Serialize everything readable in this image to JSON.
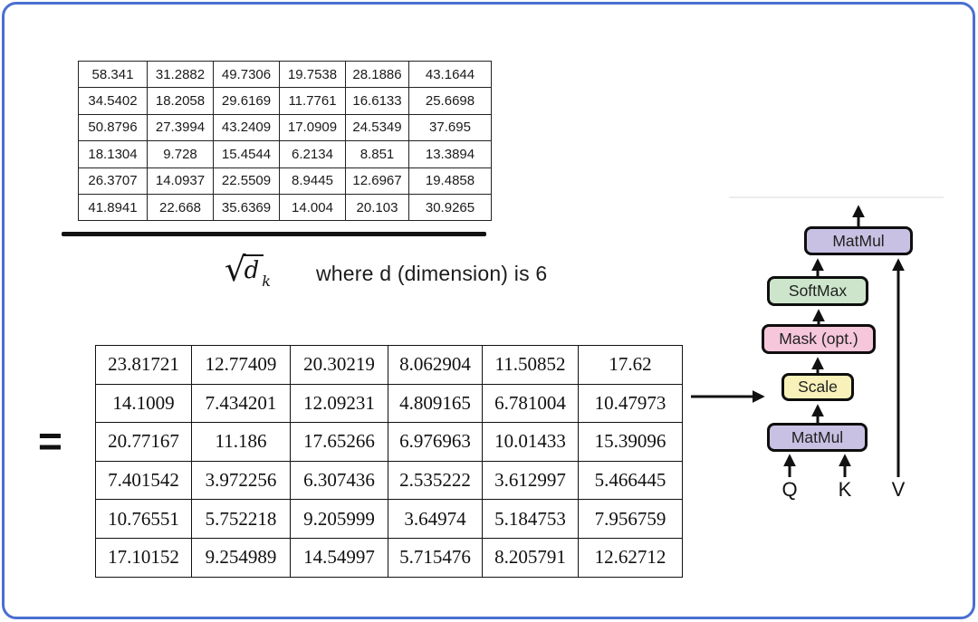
{
  "formula": {
    "sqrt_symbol": "√",
    "radicand": "d",
    "subscript": "k",
    "note": "where d (dimension) is 6",
    "equals": "="
  },
  "numerator_table": {
    "rows": [
      [
        "58.341",
        "31.2882",
        "49.7306",
        "19.7538",
        "28.1886",
        "43.1644"
      ],
      [
        "34.5402",
        "18.2058",
        "29.6169",
        "11.7761",
        "16.6133",
        "25.6698"
      ],
      [
        "50.8796",
        "27.3994",
        "43.2409",
        "17.0909",
        "24.5349",
        "37.695"
      ],
      [
        "18.1304",
        "9.728",
        "15.4544",
        "6.2134",
        "8.851",
        "13.3894"
      ],
      [
        "26.3707",
        "14.0937",
        "22.5509",
        "8.9445",
        "12.6967",
        "19.4858"
      ],
      [
        "41.8941",
        "22.668",
        "35.6369",
        "14.004",
        "20.103",
        "30.9265"
      ]
    ]
  },
  "result_table": {
    "rows": [
      [
        "23.81721",
        "12.77409",
        "20.30219",
        "8.062904",
        "11.50852",
        "17.62"
      ],
      [
        "14.1009",
        "7.434201",
        "12.09231",
        "4.809165",
        "6.781004",
        "10.47973"
      ],
      [
        "20.77167",
        "11.186",
        "17.65266",
        "6.976963",
        "10.01433",
        "15.39096"
      ],
      [
        "7.401542",
        "3.972256",
        "6.307436",
        "2.535222",
        "3.612997",
        "5.466445"
      ],
      [
        "10.76551",
        "5.752218",
        "9.205999",
        "3.64974",
        "5.184753",
        "7.956759"
      ],
      [
        "17.10152",
        "9.254989",
        "14.54997",
        "5.715476",
        "8.205791",
        "12.62712"
      ]
    ]
  },
  "diagram": {
    "boxes": [
      {
        "id": "matmul-top",
        "label": "MatMul",
        "fill": "#c9c1e3"
      },
      {
        "id": "softmax",
        "label": "SoftMax",
        "fill": "#cde6cb"
      },
      {
        "id": "mask",
        "label": "Mask (opt.)",
        "fill": "#f6c6da"
      },
      {
        "id": "scale",
        "label": "Scale",
        "fill": "#f8f2ba"
      },
      {
        "id": "matmul-bottom",
        "label": "MatMul",
        "fill": "#c9c1e3"
      }
    ],
    "inputs": [
      "Q",
      "K",
      "V"
    ]
  },
  "colors": {
    "frame_border": "#4a6fd2",
    "diagram_outline": "#0e0e0e",
    "text": "#111111"
  }
}
